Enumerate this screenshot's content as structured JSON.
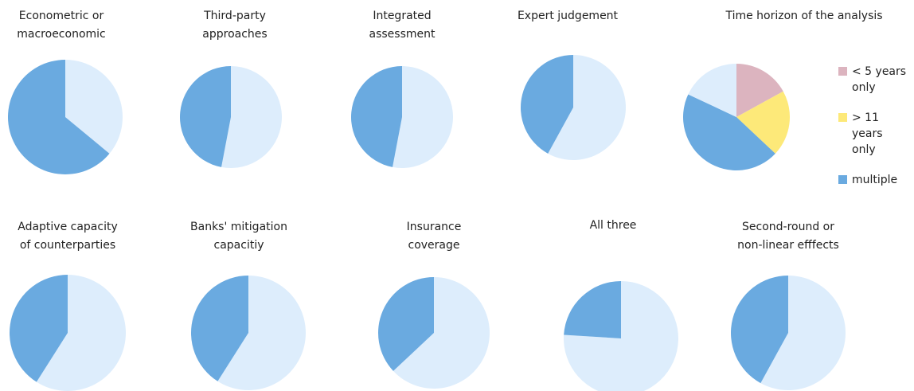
{
  "chart_data": [
    {
      "type": "pie",
      "title": [
        "Econometric or",
        "macroeconomic"
      ],
      "values": [
        36,
        64
      ],
      "colors": [
        "#ddedfc",
        "#6aaae0"
      ]
    },
    {
      "type": "pie",
      "title": [
        "Third-party",
        "approaches"
      ],
      "values": [
        53,
        47
      ],
      "colors": [
        "#ddedfc",
        "#6aaae0"
      ]
    },
    {
      "type": "pie",
      "title": [
        "Integrated",
        "assessment"
      ],
      "values": [
        53,
        47
      ],
      "colors": [
        "#ddedfc",
        "#6aaae0"
      ]
    },
    {
      "type": "pie",
      "title": [
        "Expert judgement"
      ],
      "values": [
        58,
        42
      ],
      "colors": [
        "#ddedfc",
        "#6aaae0"
      ]
    },
    {
      "type": "pie",
      "title": [
        "Time horizon of the analysis"
      ],
      "categories": [
        "< 5 years only",
        "> 11 years only",
        "multiple",
        null
      ],
      "values": [
        17,
        20,
        45,
        18
      ],
      "colors": [
        "#dcb4bf",
        "#fde979",
        "#6aaae0",
        "#ddedfc"
      ],
      "legend": "right"
    },
    {
      "type": "pie",
      "title": [
        "Adaptive capacity",
        "of counterparties"
      ],
      "values": [
        59,
        41
      ],
      "colors": [
        "#ddedfc",
        "#6aaae0"
      ]
    },
    {
      "type": "pie",
      "title": [
        "Banks' mitigation",
        "capacitiy"
      ],
      "values": [
        59,
        41
      ],
      "colors": [
        "#ddedfc",
        "#6aaae0"
      ]
    },
    {
      "type": "pie",
      "title": [
        "Insurance",
        "coverage"
      ],
      "values": [
        63,
        37
      ],
      "colors": [
        "#ddedfc",
        "#6aaae0"
      ]
    },
    {
      "type": "pie",
      "title": [
        "All three"
      ],
      "values": [
        76,
        24
      ],
      "colors": [
        "#ddedfc",
        "#6aaae0"
      ]
    },
    {
      "type": "pie",
      "title": [
        "Second-round or",
        "non-linear efffects"
      ],
      "values": [
        58,
        42
      ],
      "colors": [
        "#ddedfc",
        "#6aaae0"
      ]
    }
  ]
}
